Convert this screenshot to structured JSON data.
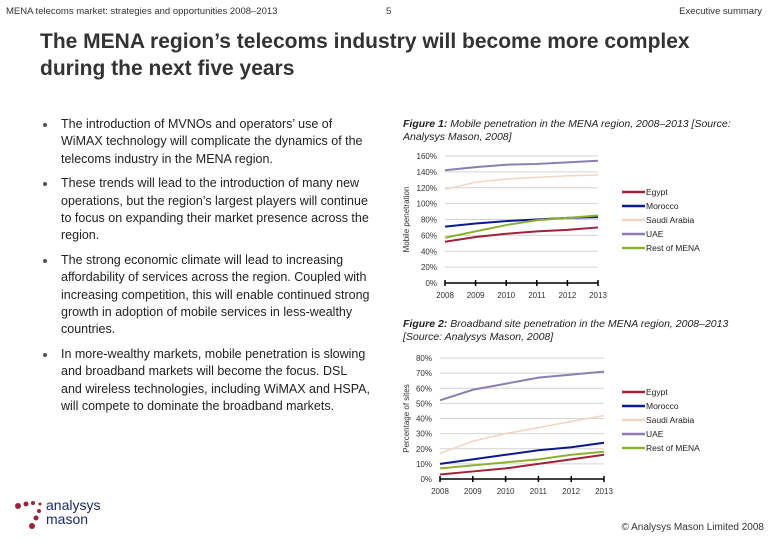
{
  "header": {
    "left": "MENA telecoms market: strategies and opportunities 2008–2013",
    "page": "5",
    "right": "Executive summary"
  },
  "title": "The MENA region’s telecoms industry will become more complex during the next five years",
  "bullets": [
    "The introduction of MVNOs and operators’ use of WiMAX technology will complicate the dynamics of the telecoms industry in the MENA region.",
    "These trends will lead to the introduction of many new operations, but the region’s largest players will continue to focus on expanding their market presence across the region.",
    "The strong economic climate will lead to increasing affordability of services across the region. Coupled with increasing competition, this will enable continued strong growth in adoption of mobile services in less-wealthy countries.",
    "In more-wealthy markets, mobile penetration is slowing and broadband markets will become the focus. DSL and wireless technologies, including WiMAX and HSPA, will compete to dominate the broadband markets."
  ],
  "figures": [
    {
      "label": "Figure 1:",
      "caption": "Mobile penetration in the MENA region, 2008–2013 [Source: Analysys Mason, 2008]"
    },
    {
      "label": "Figure 2:",
      "caption": "Broadband site penetration in the MENA region, 2008–2013 [Source: Analysys Mason, 2008]"
    }
  ],
  "chart_data": [
    {
      "type": "line",
      "ylabel": "Mobile penetration",
      "categories": [
        "2008",
        "2009",
        "2010",
        "2011",
        "2012",
        "2013"
      ],
      "ylim": [
        0,
        160
      ],
      "yticks": [
        0,
        20,
        40,
        60,
        80,
        100,
        120,
        140,
        160
      ],
      "ytick_labels": [
        "0%",
        "20%",
        "40%",
        "60%",
        "80%",
        "100%",
        "120%",
        "140%",
        "160%"
      ],
      "grid": true,
      "legend": "right",
      "series": [
        {
          "name": "Egypt",
          "color": "#a0213a",
          "values": [
            52,
            58,
            62,
            65,
            67,
            70
          ]
        },
        {
          "name": "Morocco",
          "color": "#0b1a8c",
          "values": [
            71,
            75,
            78,
            80,
            82,
            83
          ]
        },
        {
          "name": "Saudi Arabia",
          "color": "#efd6c4",
          "values": [
            118,
            127,
            131,
            133,
            135,
            136
          ]
        },
        {
          "name": "UAE",
          "color": "#8c7fb0",
          "values": [
            142,
            146,
            149,
            150,
            152,
            154
          ]
        },
        {
          "name": "Rest of MENA",
          "color": "#8db032",
          "values": [
            57,
            65,
            73,
            79,
            82,
            85
          ]
        }
      ]
    },
    {
      "type": "line",
      "ylabel": "Percentage of sites",
      "categories": [
        "2008",
        "2009",
        "2010",
        "2011",
        "2012",
        "2013"
      ],
      "ylim": [
        0,
        80
      ],
      "yticks": [
        0,
        10,
        20,
        30,
        40,
        50,
        60,
        70,
        80
      ],
      "ytick_labels": [
        "0%",
        "10%",
        "20%",
        "30%",
        "40%",
        "50%",
        "60%",
        "70%",
        "80%"
      ],
      "grid": true,
      "legend": "right",
      "series": [
        {
          "name": "Egypt",
          "color": "#a0213a",
          "values": [
            3,
            5,
            7,
            10,
            13,
            16
          ]
        },
        {
          "name": "Morocco",
          "color": "#0b1a8c",
          "values": [
            10,
            13,
            16,
            19,
            21,
            24
          ]
        },
        {
          "name": "Saudi Arabia",
          "color": "#efd6c4",
          "values": [
            17,
            25,
            30,
            34,
            38,
            42
          ]
        },
        {
          "name": "UAE",
          "color": "#8c7fb0",
          "values": [
            52,
            59,
            63,
            67,
            69,
            71
          ]
        },
        {
          "name": "Rest of MENA",
          "color": "#8db032",
          "values": [
            7,
            9,
            11,
            13,
            16,
            18
          ]
        }
      ]
    }
  ],
  "logo": {
    "line1": "analysys",
    "line2": "mason",
    "color": "#a0213a"
  },
  "footer": "© Analysys Mason Limited 2008"
}
